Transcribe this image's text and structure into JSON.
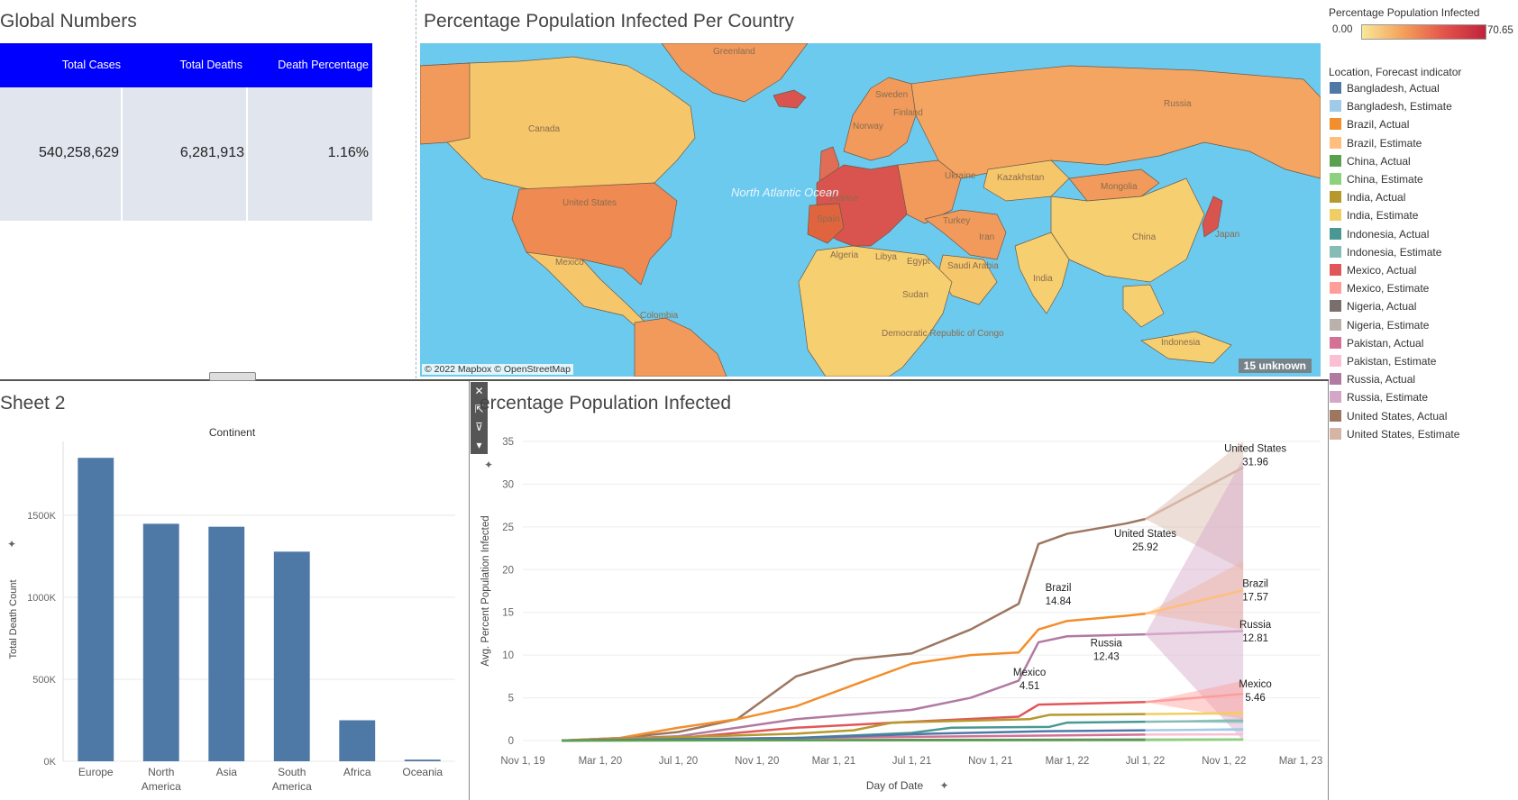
{
  "global_numbers": {
    "title": "Global Numbers",
    "columns": [
      "Total Cases",
      "Total Deaths",
      "Death Percentage"
    ],
    "values": [
      "540,258,629",
      "6,281,913",
      "1.16%"
    ]
  },
  "map": {
    "title": "Percentage Population Infected Per Country",
    "attribution": "© 2022 Mapbox © OpenStreetMap",
    "unknown_badge": "15 unknown",
    "labels": [
      "Greenland",
      "Canada",
      "United States",
      "Mexico",
      "Colombia",
      "North Atlantic Ocean",
      "Sweden",
      "Finland",
      "Norway",
      "Russia",
      "Ukraine",
      "Kazakhstan",
      "Mongolia",
      "France",
      "Spain",
      "Turkey",
      "Iran",
      "Algeria",
      "Libya",
      "Egypt",
      "Saudi Arabia",
      "Sudan",
      "Democratic Republic of Congo",
      "China",
      "India",
      "Japan",
      "Indonesia"
    ],
    "colors": {
      "ocean": "#6ccaee",
      "low": "#f6cf70",
      "mid": "#f19a5c",
      "high": "#d9534f"
    }
  },
  "legend": {
    "color_title": "Percentage Population Infected",
    "color_min": "0.00",
    "color_max": "70.65",
    "series_title": "Location, Forecast indicator",
    "items": [
      {
        "label": "Bangladesh, Actual",
        "color": "#4e79a7"
      },
      {
        "label": "Bangladesh, Estimate",
        "color": "#a0cbe8"
      },
      {
        "label": "Brazil, Actual",
        "color": "#f28e2b"
      },
      {
        "label": "Brazil, Estimate",
        "color": "#ffbe7d"
      },
      {
        "label": "China, Actual",
        "color": "#59a14f"
      },
      {
        "label": "China, Estimate",
        "color": "#8cd17d"
      },
      {
        "label": "India, Actual",
        "color": "#b6992d"
      },
      {
        "label": "India, Estimate",
        "color": "#f1ce63"
      },
      {
        "label": "Indonesia, Actual",
        "color": "#499894"
      },
      {
        "label": "Indonesia, Estimate",
        "color": "#86bcb6"
      },
      {
        "label": "Mexico, Actual",
        "color": "#e15759"
      },
      {
        "label": "Mexico, Estimate",
        "color": "#ff9d9a"
      },
      {
        "label": "Nigeria, Actual",
        "color": "#79706e"
      },
      {
        "label": "Nigeria, Estimate",
        "color": "#bab0ac"
      },
      {
        "label": "Pakistan, Actual",
        "color": "#d37295"
      },
      {
        "label": "Pakistan, Estimate",
        "color": "#fabfd2"
      },
      {
        "label": "Russia, Actual",
        "color": "#b07aa1"
      },
      {
        "label": "Russia, Estimate",
        "color": "#d4a6c8"
      },
      {
        "label": "United States, Actual",
        "color": "#9d7660"
      },
      {
        "label": "United States, Estimate",
        "color": "#d7b5a6"
      }
    ]
  },
  "sheet2": {
    "title": "Sheet 2"
  },
  "line_title": "ercentage Population Infected",
  "toolbar": {
    "close": "✕",
    "open": "⇱",
    "filter": "⊽",
    "more": "▾"
  },
  "chart_data": [
    {
      "type": "bar",
      "title": "Continent",
      "ylabel": "Total Death Count",
      "categories": [
        "Europe",
        "North America",
        "Asia",
        "South America",
        "Africa",
        "Oceania"
      ],
      "category_labels": [
        [
          "Europe"
        ],
        [
          "North",
          "America"
        ],
        [
          "Asia"
        ],
        [
          "South",
          "America"
        ],
        [
          "Africa"
        ],
        [
          "Oceania"
        ]
      ],
      "values": [
        1850000,
        1448000,
        1430000,
        1278000,
        250000,
        10000
      ],
      "ylim": [
        0,
        1950000
      ],
      "yticks": [
        0,
        500000,
        1000000,
        1500000
      ],
      "ytick_labels": [
        "0K",
        "500K",
        "1000K",
        "1500K"
      ],
      "color": "#4e79a7",
      "grid": true
    },
    {
      "type": "line",
      "title": "ercentage Population Infected",
      "xlabel": "Day of Date",
      "ylabel": "Avg. Percent Population Infected",
      "ylim": [
        0,
        35
      ],
      "yticks": [
        0,
        5,
        10,
        15,
        20,
        25,
        30,
        35
      ],
      "xlim": [
        "2019-11-01",
        "2023-04-01"
      ],
      "xticks": [
        "2019-11-01",
        "2020-03-01",
        "2020-07-01",
        "2020-11-01",
        "2021-03-01",
        "2021-07-01",
        "2021-11-01",
        "2022-03-01",
        "2022-07-01",
        "2022-11-01",
        "2023-03-01"
      ],
      "xtick_labels": [
        "Nov 1, 19",
        "Mar 1, 20",
        "Jul 1, 20",
        "Nov 1, 20",
        "Mar 1, 21",
        "Jul 1, 21",
        "Nov 1, 21",
        "Mar 1, 22",
        "Jul 1, 22",
        "Nov 1, 22",
        "Mar 1, 23"
      ],
      "series": [
        {
          "name": "United States",
          "color": "#9d7660",
          "estimate_color": "#d7b5a6",
          "x": [
            "2020-01-01",
            "2020-04-01",
            "2020-07-01",
            "2020-10-01",
            "2021-01-01",
            "2021-04-01",
            "2021-07-01",
            "2021-10-01",
            "2021-12-15",
            "2022-01-15",
            "2022-03-01",
            "2022-06-01",
            "2022-07-01"
          ],
          "y": [
            0,
            0.3,
            1,
            2.5,
            7.5,
            9.5,
            10.2,
            13,
            16,
            23,
            24.2,
            25.4,
            25.92
          ],
          "est_x": [
            "2022-07-01",
            "2022-12-01"
          ],
          "est_y": [
            25.92,
            31.96
          ],
          "est_lo": [
            25.92,
            20
          ],
          "est_hi": [
            25.92,
            35
          ]
        },
        {
          "name": "Brazil",
          "color": "#f28e2b",
          "estimate_color": "#ffbe7d",
          "x": [
            "2020-01-01",
            "2020-04-01",
            "2020-07-01",
            "2020-10-01",
            "2021-01-01",
            "2021-04-01",
            "2021-07-01",
            "2021-10-01",
            "2021-12-15",
            "2022-01-15",
            "2022-03-01",
            "2022-06-01",
            "2022-07-01"
          ],
          "y": [
            0,
            0.3,
            1.5,
            2.5,
            4,
            6.5,
            9,
            10,
            10.3,
            13,
            14,
            14.6,
            14.84
          ],
          "est_x": [
            "2022-07-01",
            "2022-12-01"
          ],
          "est_y": [
            14.84,
            17.57
          ],
          "est_lo": [
            14.84,
            13
          ],
          "est_hi": [
            14.84,
            21
          ]
        },
        {
          "name": "Russia",
          "color": "#b07aa1",
          "estimate_color": "#d4a6c8",
          "x": [
            "2020-01-01",
            "2020-07-01",
            "2021-01-01",
            "2021-07-01",
            "2021-10-01",
            "2021-12-15",
            "2022-01-15",
            "2022-03-01",
            "2022-07-01"
          ],
          "y": [
            0,
            0.5,
            2.5,
            3.6,
            5,
            7,
            11.5,
            12.2,
            12.43
          ],
          "est_x": [
            "2022-07-01",
            "2022-12-01"
          ],
          "est_y": [
            12.43,
            12.81
          ],
          "est_lo": [
            12.43,
            0
          ],
          "est_hi": [
            12.43,
            33
          ]
        },
        {
          "name": "Mexico",
          "color": "#e15759",
          "estimate_color": "#ff9d9a",
          "x": [
            "2020-01-01",
            "2020-07-01",
            "2021-01-01",
            "2021-07-01",
            "2021-12-15",
            "2022-01-15",
            "2022-07-01"
          ],
          "y": [
            0,
            0.3,
            1.5,
            2.2,
            2.8,
            4.2,
            4.51
          ],
          "est_x": [
            "2022-07-01",
            "2022-12-01"
          ],
          "est_y": [
            4.51,
            5.46
          ],
          "est_lo": [
            4.51,
            2.5
          ],
          "est_hi": [
            4.51,
            7
          ]
        },
        {
          "name": "India",
          "color": "#b6992d",
          "estimate_color": "#f1ce63",
          "x": [
            "2020-01-01",
            "2021-01-01",
            "2021-04-01",
            "2021-06-01",
            "2022-01-01",
            "2022-02-01",
            "2022-07-01"
          ],
          "y": [
            0,
            0.8,
            1.2,
            2.1,
            2.5,
            3.0,
            3.1
          ],
          "est_x": [
            "2022-07-01",
            "2022-12-01"
          ],
          "est_y": [
            3.1,
            3.2
          ],
          "est_lo": [
            3.1,
            3.0
          ],
          "est_hi": [
            3.1,
            3.4
          ]
        },
        {
          "name": "Indonesia",
          "color": "#499894",
          "estimate_color": "#86bcb6",
          "x": [
            "2020-01-01",
            "2021-01-01",
            "2021-07-01",
            "2021-09-01",
            "2022-02-01",
            "2022-03-01",
            "2022-07-01"
          ],
          "y": [
            0,
            0.3,
            0.9,
            1.5,
            1.6,
            2.1,
            2.2
          ],
          "est_x": [
            "2022-07-01",
            "2022-12-01"
          ],
          "est_y": [
            2.2,
            2.3
          ],
          "est_lo": [
            2.2,
            2.0
          ],
          "est_hi": [
            2.2,
            2.6
          ]
        },
        {
          "name": "Pakistan",
          "color": "#d37295",
          "estimate_color": "#fabfd2",
          "x": [
            "2020-01-01",
            "2021-01-01",
            "2022-07-01"
          ],
          "y": [
            0,
            0.3,
            0.7
          ],
          "est_x": [
            "2022-07-01",
            "2022-12-01"
          ],
          "est_y": [
            0.7,
            0.72
          ],
          "est_lo": [
            0.7,
            0.6
          ],
          "est_hi": [
            0.7,
            0.8
          ]
        },
        {
          "name": "Bangladesh",
          "color": "#4e79a7",
          "estimate_color": "#a0cbe8",
          "x": [
            "2020-01-01",
            "2021-01-01",
            "2021-08-01",
            "2022-02-01",
            "2022-07-01"
          ],
          "y": [
            0,
            0.3,
            0.8,
            1.1,
            1.2
          ],
          "est_x": [
            "2022-07-01",
            "2022-12-01"
          ],
          "est_y": [
            1.2,
            1.3
          ],
          "est_lo": [
            1.2,
            1.1
          ],
          "est_hi": [
            1.2,
            1.5
          ]
        },
        {
          "name": "Nigeria",
          "color": "#79706e",
          "estimate_color": "#bab0ac",
          "x": [
            "2020-01-01",
            "2022-07-01"
          ],
          "y": [
            0,
            0.12
          ],
          "est_x": [
            "2022-07-01",
            "2022-12-01"
          ],
          "est_y": [
            0.12,
            0.13
          ],
          "est_lo": [
            0.12,
            0.1
          ],
          "est_hi": [
            0.12,
            0.15
          ]
        },
        {
          "name": "China",
          "color": "#59a14f",
          "estimate_color": "#8cd17d",
          "x": [
            "2020-01-01",
            "2022-07-01"
          ],
          "y": [
            0,
            0.05
          ],
          "est_x": [
            "2022-07-01",
            "2022-12-01"
          ],
          "est_y": [
            0.05,
            0.1
          ],
          "est_lo": [
            0.05,
            0
          ],
          "est_hi": [
            0.05,
            0.2
          ]
        }
      ],
      "annotations": [
        {
          "lines": [
            "United States",
            "31.96"
          ],
          "x": "2022-12-20",
          "y": 33.8
        },
        {
          "lines": [
            "United States",
            "25.92"
          ],
          "x": "2022-07-01",
          "y": 23.8
        },
        {
          "lines": [
            "Brazil",
            "14.84"
          ],
          "x": "2022-02-15",
          "y": 17.5
        },
        {
          "lines": [
            "Brazil",
            "17.57"
          ],
          "x": "2022-12-20",
          "y": 18.0
        },
        {
          "lines": [
            "Russia",
            "12.81"
          ],
          "x": "2022-12-20",
          "y": 13.2
        },
        {
          "lines": [
            "Russia",
            "12.43"
          ],
          "x": "2022-05-01",
          "y": 11.0
        },
        {
          "lines": [
            "Mexico",
            "4.51"
          ],
          "x": "2022-01-01",
          "y": 7.6
        },
        {
          "lines": [
            "Mexico",
            "5.46"
          ],
          "x": "2022-12-20",
          "y": 6.2
        }
      ]
    }
  ]
}
